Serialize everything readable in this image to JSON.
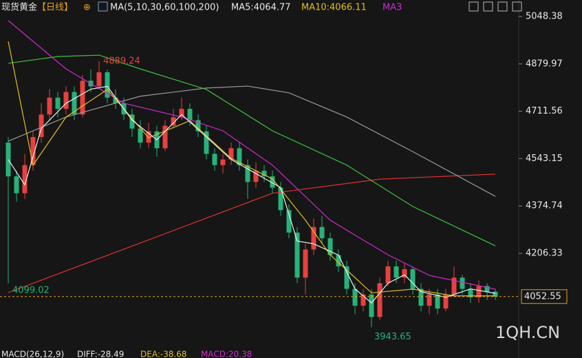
{
  "chart_data": {
    "type": "candlestick",
    "title": "现货黄金",
    "period": "【日线】",
    "ma_legend": [
      "MA(5,10,30,60,100,200)",
      "MA5:4064.77",
      "MA10:4066.11",
      "MA3"
    ],
    "indicator_legend": [
      "MACD(26,12,9)",
      "DIFF:-28.49",
      "DEA:-38.68",
      "MACD:20.38"
    ],
    "watermark": "1QH.CN",
    "up_color": "#e8403f",
    "down_color": "#27b27a",
    "ylim": [
      3883.1,
      5107.1
    ],
    "yticks": [
      5048.38,
      4879.97,
      4711.56,
      4543.15,
      4374.74,
      4206.33
    ],
    "candles": [
      {
        "open": 4600,
        "high": 4620,
        "low": 4099.02,
        "close": 4480
      },
      {
        "open": 4480,
        "high": 4500,
        "low": 4390,
        "close": 4420
      },
      {
        "open": 4420,
        "high": 4560,
        "low": 4400,
        "close": 4520
      },
      {
        "open": 4520,
        "high": 4640,
        "low": 4500,
        "close": 4620
      },
      {
        "open": 4620,
        "high": 4740,
        "low": 4600,
        "close": 4700
      },
      {
        "open": 4700,
        "high": 4790,
        "low": 4680,
        "close": 4760
      },
      {
        "open": 4760,
        "high": 4780,
        "low": 4690,
        "close": 4720
      },
      {
        "open": 4720,
        "high": 4800,
        "low": 4700,
        "close": 4780
      },
      {
        "open": 4780,
        "high": 4800,
        "low": 4680,
        "close": 4700
      },
      {
        "open": 4700,
        "high": 4840,
        "low": 4690,
        "close": 4820
      },
      {
        "open": 4820,
        "high": 4860,
        "low": 4780,
        "close": 4800
      },
      {
        "open": 4800,
        "high": 4889.24,
        "low": 4790,
        "close": 4850
      },
      {
        "open": 4850,
        "high": 4860,
        "low": 4740,
        "close": 4760
      },
      {
        "open": 4760,
        "high": 4790,
        "low": 4720,
        "close": 4740
      },
      {
        "open": 4740,
        "high": 4760,
        "low": 4680,
        "close": 4700
      },
      {
        "open": 4700,
        "high": 4720,
        "low": 4620,
        "close": 4650
      },
      {
        "open": 4650,
        "high": 4680,
        "low": 4580,
        "close": 4600
      },
      {
        "open": 4600,
        "high": 4670,
        "low": 4580,
        "close": 4640
      },
      {
        "open": 4640,
        "high": 4660,
        "low": 4550,
        "close": 4580
      },
      {
        "open": 4580,
        "high": 4680,
        "low": 4570,
        "close": 4660
      },
      {
        "open": 4660,
        "high": 4720,
        "low": 4650,
        "close": 4690
      },
      {
        "open": 4690,
        "high": 4760,
        "low": 4680,
        "close": 4720
      },
      {
        "open": 4720,
        "high": 4740,
        "low": 4660,
        "close": 4680
      },
      {
        "open": 4680,
        "high": 4700,
        "low": 4620,
        "close": 4640
      },
      {
        "open": 4640,
        "high": 4660,
        "low": 4540,
        "close": 4560
      },
      {
        "open": 4560,
        "high": 4580,
        "low": 4500,
        "close": 4520
      },
      {
        "open": 4520,
        "high": 4560,
        "low": 4490,
        "close": 4540
      },
      {
        "open": 4540,
        "high": 4600,
        "low": 4520,
        "close": 4580
      },
      {
        "open": 4580,
        "high": 4600,
        "low": 4500,
        "close": 4520
      },
      {
        "open": 4520,
        "high": 4540,
        "low": 4400,
        "close": 4460
      },
      {
        "open": 4460,
        "high": 4530,
        "low": 4440,
        "close": 4500
      },
      {
        "open": 4500,
        "high": 4520,
        "low": 4460,
        "close": 4480
      },
      {
        "open": 4480,
        "high": 4500,
        "low": 4420,
        "close": 4440
      },
      {
        "open": 4440,
        "high": 4460,
        "low": 4340,
        "close": 4360
      },
      {
        "open": 4360,
        "high": 4380,
        "low": 4260,
        "close": 4280
      },
      {
        "open": 4280,
        "high": 4300,
        "low": 4100,
        "close": 4120
      },
      {
        "open": 4120,
        "high": 4240,
        "low": 4060,
        "close": 4220
      },
      {
        "open": 4220,
        "high": 4330,
        "low": 4200,
        "close": 4300
      },
      {
        "open": 4300,
        "high": 4340,
        "low": 4240,
        "close": 4260
      },
      {
        "open": 4260,
        "high": 4280,
        "low": 4180,
        "close": 4200
      },
      {
        "open": 4200,
        "high": 4220,
        "low": 4140,
        "close": 4160
      },
      {
        "open": 4160,
        "high": 4180,
        "low": 4060,
        "close": 4080
      },
      {
        "open": 4080,
        "high": 4100,
        "low": 3990,
        "close": 4020
      },
      {
        "open": 4020,
        "high": 4080,
        "low": 4000,
        "close": 4060
      },
      {
        "open": 4060,
        "high": 4080,
        "low": 3943.65,
        "close": 3980
      },
      {
        "open": 3980,
        "high": 4120,
        "low": 3970,
        "close": 4100
      },
      {
        "open": 4100,
        "high": 4180,
        "low": 4090,
        "close": 4160
      },
      {
        "open": 4160,
        "high": 4180,
        "low": 4100,
        "close": 4120
      },
      {
        "open": 4120,
        "high": 4170,
        "low": 4100,
        "close": 4150
      },
      {
        "open": 4150,
        "high": 4160,
        "low": 4060,
        "close": 4080
      },
      {
        "open": 4080,
        "high": 4100,
        "low": 4000,
        "close": 4020
      },
      {
        "open": 4020,
        "high": 4080,
        "low": 3990,
        "close": 4060
      },
      {
        "open": 4060,
        "high": 4080,
        "low": 3990,
        "close": 4010
      },
      {
        "open": 4010,
        "high": 4080,
        "low": 4000,
        "close": 4060
      },
      {
        "open": 4060,
        "high": 4160,
        "low": 4050,
        "close": 4120
      },
      {
        "open": 4120,
        "high": 4130,
        "low": 4060,
        "close": 4080
      },
      {
        "open": 4080,
        "high": 4100,
        "low": 4030,
        "close": 4050
      },
      {
        "open": 4050,
        "high": 4110,
        "low": 4030,
        "close": 4090
      },
      {
        "open": 4090,
        "high": 4100,
        "low": 4040,
        "close": 4070
      },
      {
        "open": 4070,
        "high": 4080,
        "low": 4040,
        "close": 4052.55
      }
    ],
    "lines": [
      {
        "color": "#e03030",
        "x": [
          0,
          16,
          32,
          45,
          59
        ],
        "values": [
          4067,
          4243,
          4420,
          4470,
          4488
        ]
      },
      {
        "color": "#9a9a9a",
        "x": [
          0,
          7,
          16,
          24,
          29,
          34,
          41,
          49,
          59
        ],
        "values": [
          4605,
          4691,
          4765,
          4794,
          4801,
          4777,
          4691,
          4568,
          4409
        ]
      },
      {
        "color": "#3cc23c",
        "x": [
          0,
          6,
          11,
          16,
          24,
          32,
          41,
          49,
          59
        ],
        "values": [
          4882,
          4906,
          4911,
          4862,
          4789,
          4642,
          4520,
          4373,
          4233
        ]
      },
      {
        "color": "#d02ad0",
        "x": [
          0,
          7,
          14,
          21,
          26,
          32,
          39,
          46,
          51,
          59
        ],
        "values": [
          5034,
          4862,
          4740,
          4691,
          4642,
          4520,
          4324,
          4201,
          4128,
          4079
        ]
      },
      {
        "color": "#e0c020",
        "x": [
          0,
          3,
          7,
          12,
          17,
          22,
          27,
          32,
          36,
          39,
          44,
          49,
          54,
          59
        ],
        "values": [
          4960,
          4520,
          4691,
          4789,
          4617,
          4678,
          4544,
          4471,
          4324,
          4201,
          4066,
          4079,
          4055,
          4055
        ]
      },
      {
        "color": "#f0f0f0",
        "x": [
          0,
          2,
          4,
          7,
          10,
          12,
          15,
          18,
          21,
          24,
          27,
          30,
          33,
          35,
          37,
          40,
          42,
          44,
          46,
          48,
          50,
          53,
          56,
          59
        ],
        "values": [
          4540,
          4450,
          4650,
          4740,
          4790,
          4800,
          4680,
          4610,
          4700,
          4620,
          4540,
          4490,
          4440,
          4250,
          4240,
          4200,
          4080,
          4030,
          4100,
          4130,
          4070,
          4050,
          4080,
          4064
        ]
      }
    ]
  }
}
